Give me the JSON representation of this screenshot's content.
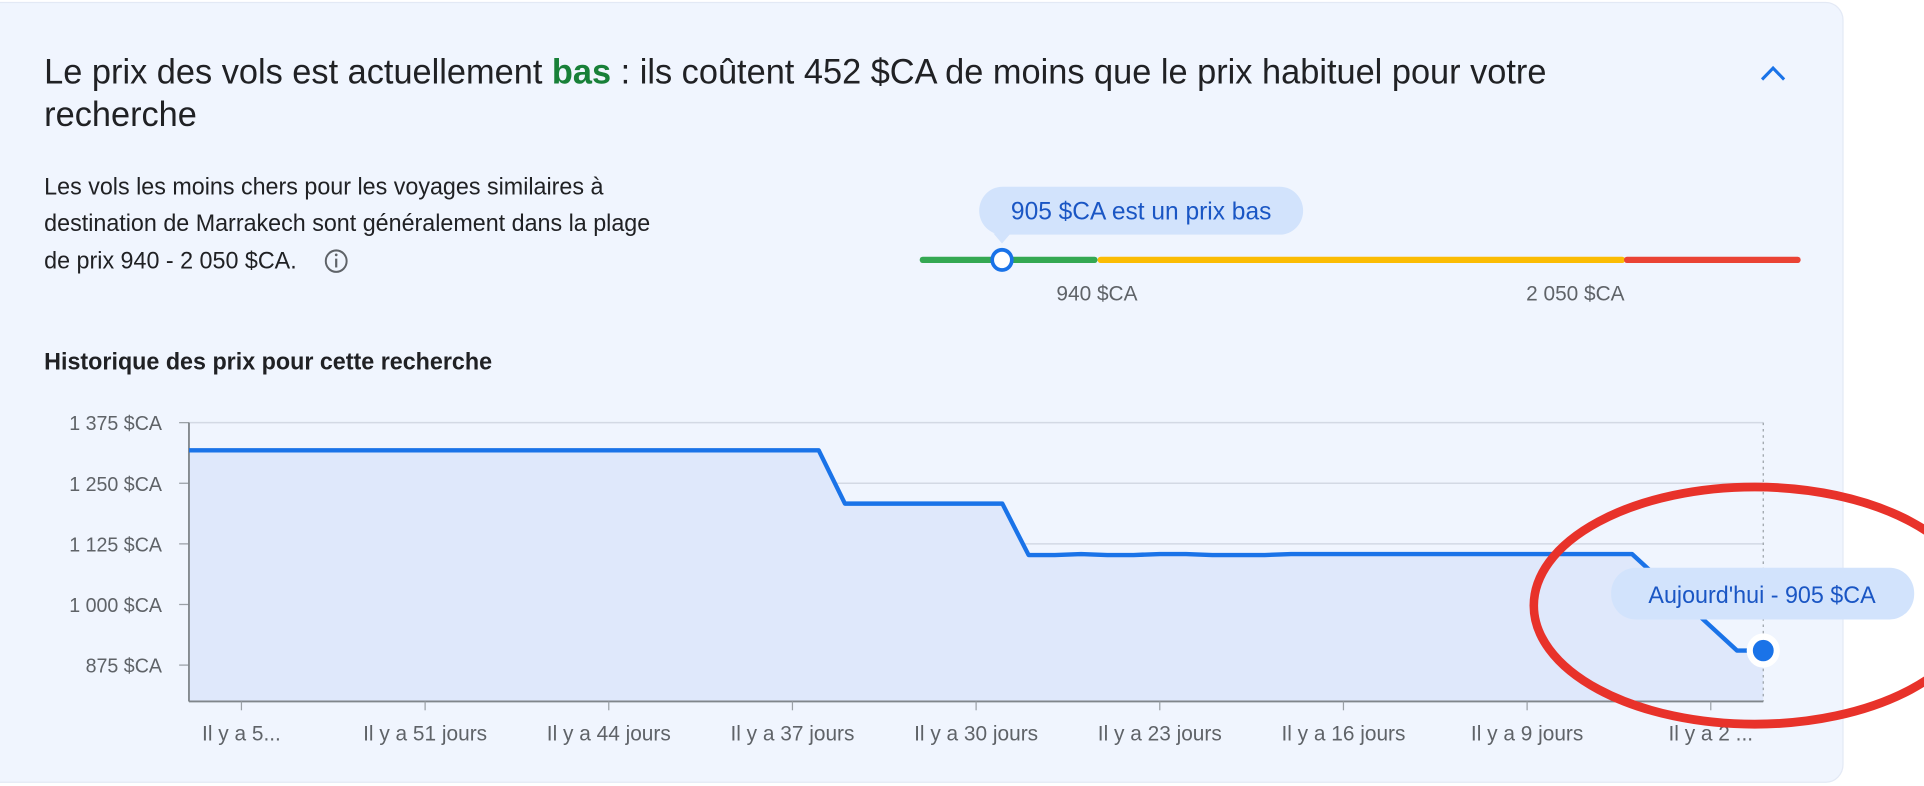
{
  "header": {
    "title": [
      "Le prix des vols est actuellement ",
      "bas",
      " : ils coûtent 452 $CA de moins que le prix habituel pour votre",
      "recherche"
    ]
  },
  "summary": [
    "Les vols les moins chers pour les voyages similaires à",
    "destination de Marrakech sont généralement dans la plage",
    "de prix 940 - 2 050 $CA."
  ],
  "price_range": {
    "badge": "905 $CA est un prix bas",
    "price": 905,
    "lim": [
      875,
      2420
    ],
    "thresholds": [
      {
        "value": 940,
        "label": "940 $CA"
      },
      {
        "value": 2050,
        "label": "2 050 $CA"
      }
    ],
    "colors": [
      "#34a853",
      "#fbbc04",
      "#ea4335"
    ]
  },
  "chart_data": {
    "type": "line",
    "title": "Historique des prix pour cette recherche",
    "x": [
      60,
      36,
      35,
      29,
      28,
      27,
      26,
      25,
      24,
      23,
      22,
      21,
      19,
      18,
      5,
      1,
      0
    ],
    "series": [
      {
        "color": "#1a73e8",
        "values": [
          1318,
          1318,
          1208,
          1208,
          1102,
          1102,
          1104,
          1102,
          1102,
          1104,
          1104,
          1102,
          1102,
          1104,
          1104,
          905,
          905
        ]
      }
    ],
    "xlim": [
      60,
      0
    ],
    "xticks": [
      {
        "value": 58,
        "label": "Il y a 5..."
      },
      {
        "value": 51,
        "label": "Il y a 51 jours"
      },
      {
        "value": 44,
        "label": "Il y a 44 jours"
      },
      {
        "value": 37,
        "label": "Il y a 37 jours"
      },
      {
        "value": 30,
        "label": "Il y a 30 jours"
      },
      {
        "value": 23,
        "label": "Il y a 23 jours"
      },
      {
        "value": 16,
        "label": "Il y a 16 jours"
      },
      {
        "value": 9,
        "label": "Il y a 9 jours"
      },
      {
        "value": 2,
        "label": "Il y a 2 ..."
      }
    ],
    "ylim": [
      800,
      1375
    ],
    "yticks": [
      {
        "value": 875,
        "label": "875 $CA"
      },
      {
        "value": 1000,
        "label": "1 000 $CA"
      },
      {
        "value": 1125,
        "label": "1 125 $CA"
      },
      {
        "value": 1250,
        "label": "1 250 $CA"
      },
      {
        "value": 1375,
        "label": "1 375 $CA"
      }
    ],
    "grid": true,
    "annotation": "Aujourd'hui - 905 $CA"
  }
}
